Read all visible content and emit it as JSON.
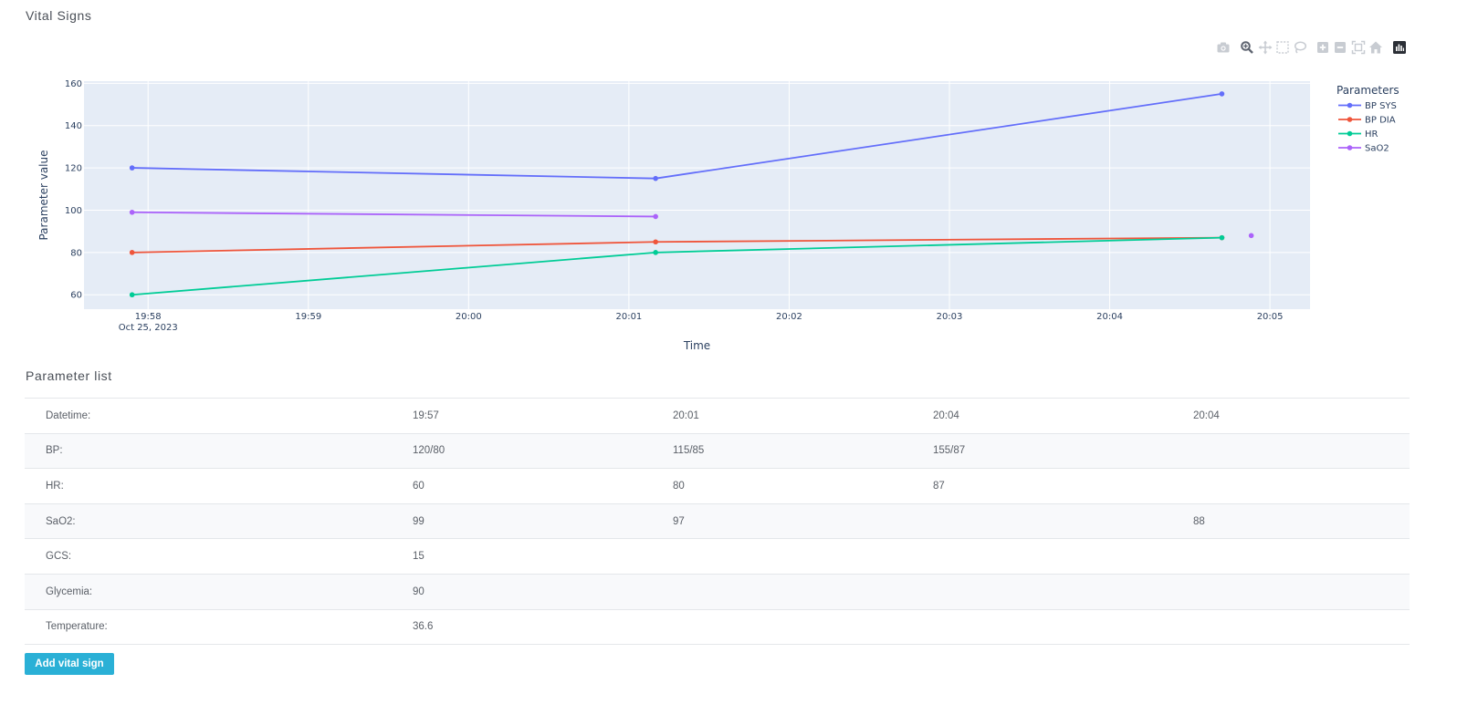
{
  "page": {
    "vitals_title": "Vital Signs",
    "params_title": "Parameter list",
    "add_button_label": "Add vital sign"
  },
  "modebar": [
    "camera-icon",
    "zoom-icon",
    "pan-icon",
    "box-select-icon",
    "lasso-icon",
    "zoom-in-icon",
    "zoom-out-icon",
    "autoscale-icon",
    "reset-axes-icon",
    "plotly-logo-icon"
  ],
  "chart_data": {
    "type": "line",
    "title": "",
    "xlabel": "Time",
    "ylabel": "Parameter value",
    "x_ticks": [
      {
        "t": "19:58",
        "label": "19:58",
        "sub": "Oct 25, 2023"
      },
      {
        "t": "19:59",
        "label": "19:59"
      },
      {
        "t": "20:00",
        "label": "20:00"
      },
      {
        "t": "20:01",
        "label": "20:01"
      },
      {
        "t": "20:02",
        "label": "20:02"
      },
      {
        "t": "20:03",
        "label": "20:03"
      },
      {
        "t": "20:04",
        "label": "20:04"
      },
      {
        "t": "20:05",
        "label": "20:05"
      }
    ],
    "xlim": [
      "19:57:36",
      "20:05:15"
    ],
    "ylim": [
      53.2,
      161
    ],
    "y_ticks": [
      60,
      80,
      100,
      120,
      140,
      160
    ],
    "grid": true,
    "legend_title": "Parameters",
    "legend_position": "right",
    "series": [
      {
        "name": "BP SYS",
        "color": "#636efa",
        "points": [
          [
            "19:57:54",
            120
          ],
          [
            "20:01:10",
            115
          ],
          [
            "20:04:42",
            155
          ]
        ]
      },
      {
        "name": "BP DIA",
        "color": "#ef553b",
        "points": [
          [
            "19:57:54",
            80
          ],
          [
            "20:01:10",
            85
          ],
          [
            "20:04:42",
            87
          ]
        ]
      },
      {
        "name": "HR",
        "color": "#00cc96",
        "points": [
          [
            "19:57:54",
            60
          ],
          [
            "20:01:10",
            80
          ],
          [
            "20:04:42",
            87
          ]
        ]
      },
      {
        "name": "SaO2",
        "color": "#ab63fa",
        "points": [
          [
            "19:57:54",
            99
          ],
          [
            "20:01:10",
            97
          ],
          [
            "20:04:53",
            88
          ]
        ],
        "gaps_after": [
          1
        ]
      }
    ]
  },
  "table": {
    "rows": [
      {
        "label": "Datetime:",
        "cells": [
          "19:57",
          "20:01",
          "20:04",
          "20:04"
        ]
      },
      {
        "label": "BP:",
        "cells": [
          "120/80",
          "115/85",
          "155/87",
          ""
        ]
      },
      {
        "label": "HR:",
        "cells": [
          "60",
          "80",
          "87",
          ""
        ]
      },
      {
        "label": "SaO2:",
        "cells": [
          "99",
          "97",
          "",
          "88"
        ]
      },
      {
        "label": "GCS:",
        "cells": [
          "15",
          "",
          "",
          ""
        ]
      },
      {
        "label": "Glycemia:",
        "cells": [
          "90",
          "",
          "",
          ""
        ]
      },
      {
        "label": "Temperature:",
        "cells": [
          "36.6",
          "",
          "",
          ""
        ]
      }
    ]
  }
}
